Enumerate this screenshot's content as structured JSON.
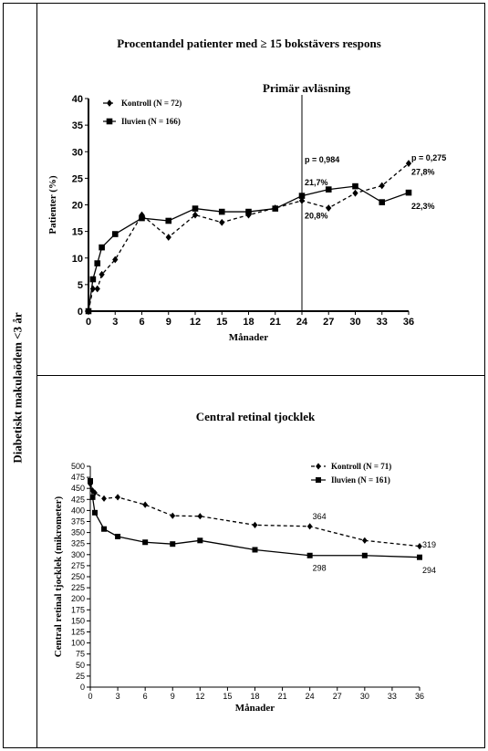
{
  "side_label": "Diabetiskt makulaödem <3 år",
  "chart_data": [
    {
      "type": "line",
      "title": "Procentandel patienter med ≥ 15 bokstävers respons",
      "xlabel": "Månader",
      "ylabel": "Patienter (%)",
      "xlim": [
        0,
        36
      ],
      "ylim": [
        0,
        40
      ],
      "xticks": [
        0,
        3,
        6,
        9,
        12,
        15,
        18,
        21,
        24,
        27,
        30,
        33,
        36
      ],
      "yticks": [
        0,
        5,
        10,
        15,
        20,
        25,
        30,
        35,
        40
      ],
      "legend_position": "top-left",
      "vline": {
        "x": 24,
        "label": "Primär avläsning"
      },
      "series": [
        {
          "name": "Kontroll (N = 72)",
          "marker": "diamond",
          "dashed": true,
          "x": [
            0,
            0.5,
            1,
            1.5,
            3,
            6,
            9,
            12,
            15,
            18,
            21,
            24,
            27,
            30,
            33,
            36
          ],
          "y": [
            0,
            4.2,
            4.2,
            6.9,
            9.7,
            18.1,
            13.9,
            18.1,
            16.7,
            18.1,
            19.4,
            20.8,
            19.4,
            22.2,
            23.6,
            27.8
          ]
        },
        {
          "name": "Iluvien (N = 166)",
          "marker": "square",
          "dashed": false,
          "x": [
            0,
            0.5,
            1,
            1.5,
            3,
            6,
            9,
            12,
            15,
            18,
            21,
            24,
            27,
            30,
            33,
            36
          ],
          "y": [
            0,
            6.0,
            9.0,
            12.0,
            14.5,
            17.5,
            17.0,
            19.3,
            18.7,
            18.7,
            19.3,
            21.7,
            22.9,
            23.5,
            20.5,
            22.3
          ]
        }
      ],
      "annotations": [
        {
          "text": "p = 0,984",
          "x": 24,
          "y": 28.5
        },
        {
          "text": "21,7%",
          "x": 24,
          "y": 24.2
        },
        {
          "text": "20,8%",
          "x": 24,
          "y": 17.9
        },
        {
          "text": "p = 0,275",
          "x": 36,
          "y": 28.8
        },
        {
          "text": "27,8%",
          "x": 36,
          "y": 26.2
        },
        {
          "text": "22,3%",
          "x": 36,
          "y": 19.7
        }
      ]
    },
    {
      "type": "line",
      "title": "Central retinal tjocklek",
      "xlabel": "Månader",
      "ylabel": "Central retinal tjocklek (mikrometer)",
      "xlim": [
        0,
        36
      ],
      "ylim": [
        0,
        500
      ],
      "xticks": [
        0,
        3,
        6,
        9,
        12,
        15,
        18,
        21,
        24,
        27,
        30,
        33,
        36
      ],
      "yticks": [
        0,
        25,
        50,
        75,
        100,
        125,
        150,
        175,
        200,
        225,
        250,
        275,
        300,
        325,
        350,
        375,
        400,
        425,
        450,
        475,
        500
      ],
      "legend_position": "top-right",
      "series": [
        {
          "name": "Kontroll (N = 71)",
          "marker": "diamond",
          "dashed": true,
          "x": [
            0,
            0.25,
            0.5,
            1.5,
            3,
            6,
            9,
            12,
            18,
            24,
            30,
            36
          ],
          "y": [
            460,
            445,
            440,
            427,
            430,
            413,
            388,
            387,
            367,
            364,
            332,
            319
          ]
        },
        {
          "name": "Iluvien (N = 161)",
          "marker": "square",
          "dashed": false,
          "x": [
            0,
            0.25,
            0.5,
            1.5,
            3,
            6,
            9,
            12,
            18,
            24,
            30,
            36
          ],
          "y": [
            467,
            430,
            395,
            358,
            341,
            328,
            324,
            332,
            311,
            298,
            298,
            294
          ]
        }
      ],
      "annotations": [
        {
          "text": "364",
          "x": 24,
          "y": 386
        },
        {
          "text": "298",
          "x": 24,
          "y": 270
        },
        {
          "text": "319",
          "x": 36,
          "y": 322
        },
        {
          "text": "294",
          "x": 36,
          "y": 264
        }
      ]
    }
  ]
}
